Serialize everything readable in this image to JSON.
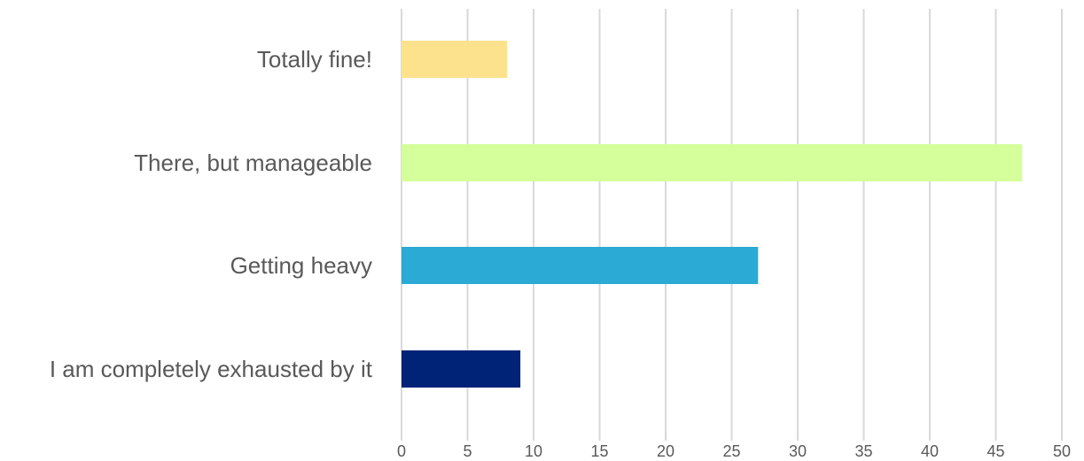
{
  "chart_data": {
    "type": "bar",
    "orientation": "horizontal",
    "categories": [
      "Totally fine!",
      "There, but manageable",
      "Getting heavy",
      "I am completely exhausted by it"
    ],
    "values": [
      8,
      47,
      27,
      9
    ],
    "colors": [
      "#fce28c",
      "#d4ff9b",
      "#2aaad4",
      "#002277"
    ],
    "xlim": [
      0,
      50
    ],
    "xticks": [
      0,
      5,
      10,
      15,
      20,
      25,
      30,
      35,
      40,
      45,
      50
    ],
    "grid": "vertical",
    "legend": "none",
    "title": "",
    "xlabel": "",
    "ylabel": ""
  }
}
